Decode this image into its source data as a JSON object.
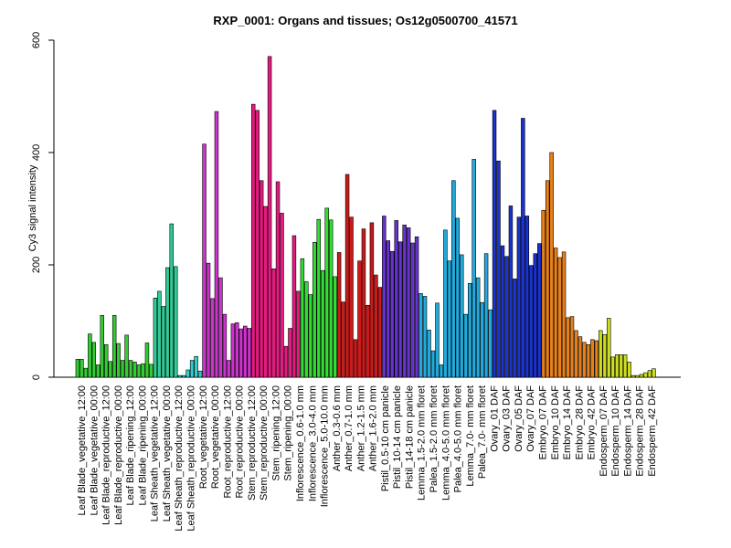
{
  "chart_data": {
    "type": "bar",
    "title": "RXP_0001: Organs and tissues; Os12g0500700_41571",
    "xlabel": "",
    "ylabel": "Cy3 signal intensity",
    "ylim": [
      0,
      600
    ],
    "yticks": [
      0,
      200,
      400,
      600
    ],
    "grid": false,
    "legend": "none",
    "tick_labels": [
      "Leaf Blade_vegetative_12:00",
      "Leaf Blade_vegetative_00:00",
      "Leaf Blade_reproductive_12:00",
      "Leaf Blade_reproductive_00:00",
      "Leaf Blade_ripening_12:00",
      "Leaf Blade_ripening_00:00",
      "Leaf Sheath_vegetative_12:00",
      "Leaf Sheath_vegetative_00:00",
      "Leaf Sheath_reproductive_12:00",
      "Leaf Sheath_reproductive_00:00",
      "Root_vegetative_12:00",
      "Root_vegetative_00:00",
      "Root_reproductive_12:00",
      "Root_reproductive_00:00",
      "Stem_reproductive_12:00",
      "Stem_reproductive_00:00",
      "Stem_ripening_12:00",
      "Stem_ripening_00:00",
      "Inflorescence_0.6-1.0 mm",
      "Inflorescence_3.0-4.0 mm",
      "Inflorescence_5.0-10.0 mm",
      "Anther_0.3-0.6 mm",
      "Anther_0.7-1.0 mm",
      "Anther_1.2-1.5 mm",
      "Anther_1.6-2.0 mm",
      "Pistil_0.5-10 cm panicle",
      "Pistil_10-14 cm panicle",
      "Pistil_14-18 cm panicle",
      "Lemma_1.5-2.0 mm floret",
      "Palea_1.5-2.0 mm floret",
      "Lemma_4.0-5.0 mm floret",
      "Palea_4.0-5.0 mm floret",
      "Lemma_7.0- mm floret",
      "Palea_7.0- mm floret",
      "Ovary_01 DAF",
      "Ovary_03 DAF",
      "Ovary_05 DAF",
      "Ovary_07 DAF",
      "Embryo_07 DAF",
      "Embryo_10 DAF",
      "Embryo_14 DAF",
      "Embryo_28 DAF",
      "Embryo_42 DAF",
      "Endosperm_07 DAF",
      "Endosperm_10 DAF",
      "Endosperm_14 DAF",
      "Endosperm_28 DAF",
      "Endosperm_42 DAF"
    ],
    "groups": [
      {
        "color": "#33CC33",
        "values": [
          32,
          32,
          16,
          77,
          62,
          22,
          110,
          58,
          28,
          110,
          60,
          30,
          75,
          30,
          27,
          22,
          24,
          61,
          23
        ]
      },
      {
        "color": "#33CC99",
        "values": [
          141,
          153,
          126,
          195,
          273,
          197
        ]
      },
      {
        "color": "#33CCCC",
        "values": [
          3,
          3,
          13,
          30,
          37,
          11
        ]
      },
      {
        "color": "#CC33CC",
        "values": [
          415,
          203,
          140,
          473,
          177,
          112,
          30,
          95,
          97,
          86,
          91,
          87
        ]
      },
      {
        "color": "#E61A80",
        "values": [
          486,
          475,
          350,
          304,
          571,
          193,
          348,
          292,
          55,
          87,
          252,
          153
        ]
      },
      {
        "color": "#33DD33",
        "values": [
          211,
          170,
          147,
          240,
          281,
          190,
          301,
          280,
          179
        ]
      },
      {
        "color": "#CC1A1A",
        "values": [
          222,
          134,
          361,
          285,
          67,
          207,
          264,
          128,
          275,
          182,
          160
        ]
      },
      {
        "color": "#6633CC",
        "values": [
          287,
          243,
          224,
          279,
          241,
          271,
          266,
          239,
          250
        ]
      },
      {
        "color": "#22AADD",
        "values": [
          149,
          144,
          84,
          47,
          132,
          22,
          262,
          207,
          350,
          283,
          218,
          112,
          167,
          388,
          177,
          133,
          220,
          120
        ]
      },
      {
        "color": "#1A33CC",
        "values": [
          475,
          385,
          234,
          215,
          305,
          175,
          285,
          461,
          287,
          199,
          220,
          238
        ]
      },
      {
        "color": "#E6801A",
        "values": [
          297,
          350,
          400,
          230,
          213,
          223,
          106,
          108,
          83,
          72,
          62,
          58,
          67,
          65
        ]
      },
      {
        "color": "#CCDD22",
        "values": [
          83,
          76,
          105,
          36,
          40,
          40,
          40,
          27,
          3,
          3,
          5,
          8,
          12,
          15
        ]
      }
    ]
  }
}
